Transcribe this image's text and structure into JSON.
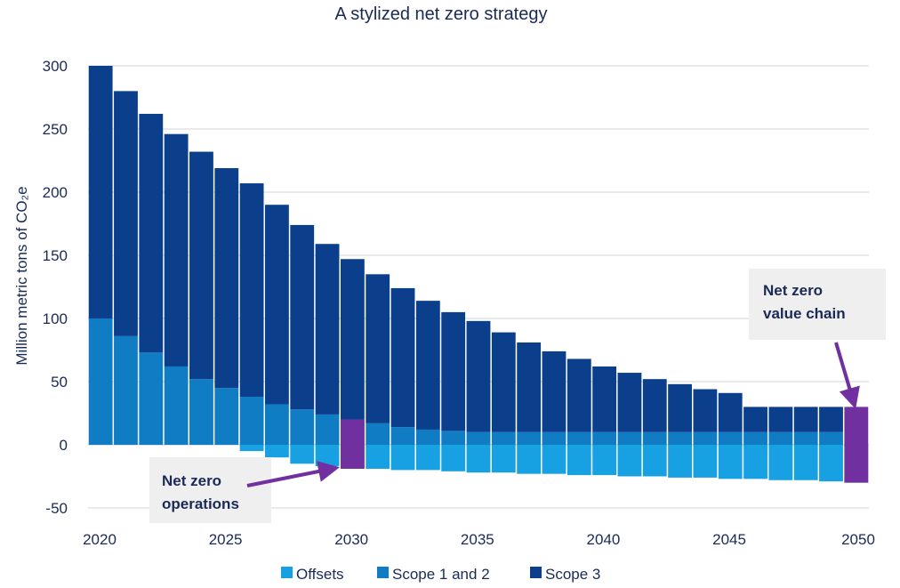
{
  "chart_data": {
    "type": "bar",
    "stacked": true,
    "title": "A stylized net zero strategy",
    "ylabel": "Million metric tons of CO₂e",
    "xlabel": "",
    "ylim": [
      -50,
      300
    ],
    "yticks": [
      -50,
      0,
      50,
      100,
      150,
      200,
      250,
      300
    ],
    "xticks": [
      2020,
      2025,
      2030,
      2035,
      2040,
      2045,
      2050
    ],
    "grid": true,
    "legend_position": "bottom",
    "categories": [
      2020,
      2021,
      2022,
      2023,
      2024,
      2025,
      2026,
      2027,
      2028,
      2029,
      2030,
      2031,
      2032,
      2033,
      2034,
      2035,
      2036,
      2037,
      2038,
      2039,
      2040,
      2041,
      2042,
      2043,
      2044,
      2045,
      2046,
      2047,
      2048,
      2049,
      2050
    ],
    "series": [
      {
        "name": "Offsets",
        "color": "#18a1e2",
        "values": [
          0,
          0,
          0,
          0,
          0,
          0,
          -5,
          -10,
          -15,
          -17,
          -19,
          -19,
          -20,
          -20,
          -21,
          -22,
          -22,
          -23,
          -23,
          -24,
          -24,
          -25,
          -25,
          -26,
          -26,
          -27,
          -27,
          -28,
          -28,
          -29,
          -30
        ]
      },
      {
        "name": "Scope 1 and 2",
        "color": "#0f7cc4",
        "values": [
          100,
          86,
          73,
          62,
          52,
          45,
          38,
          32,
          28,
          24,
          20,
          17,
          14,
          12,
          11,
          10,
          10,
          10,
          10,
          10,
          10,
          10,
          10,
          10,
          10,
          10,
          10,
          10,
          10,
          10,
          0
        ]
      },
      {
        "name": "Scope 3",
        "color": "#0b3f8c",
        "values": [
          200,
          194,
          189,
          184,
          180,
          174,
          169,
          158,
          146,
          135,
          127,
          118,
          110,
          102,
          94,
          88,
          79,
          71,
          64,
          58,
          52,
          47,
          42,
          38,
          34,
          31,
          20,
          20,
          20,
          20,
          0
        ]
      }
    ],
    "highlight": {
      "color": "#7030a0",
      "bars": [
        {
          "category": 2030,
          "from": -19,
          "to": 20
        },
        {
          "category": 2050,
          "from": -30,
          "to": 30
        }
      ]
    },
    "annotations": [
      {
        "id": "ops",
        "lines": [
          "Net zero",
          "operations"
        ],
        "target": 2030
      },
      {
        "id": "chain",
        "lines": [
          "Net zero",
          "value chain"
        ],
        "target": 2050
      }
    ]
  }
}
